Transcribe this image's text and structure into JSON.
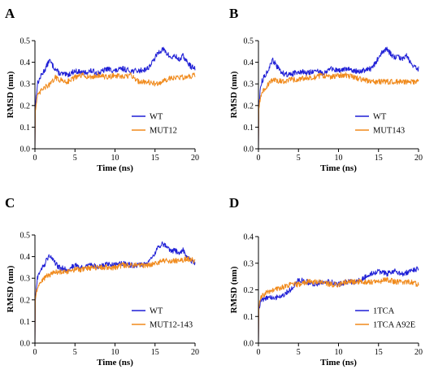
{
  "chart_data": [
    {
      "panel": "A",
      "type": "line",
      "xlabel": "Time (ns)",
      "ylabel": "RMSD (nm)",
      "xlim": [
        0,
        20
      ],
      "ylim": [
        0,
        0.5
      ],
      "xticks": [
        "0",
        "5",
        "10",
        "15",
        "20"
      ],
      "yticks": [
        "0.0",
        "0.1",
        "0.2",
        "0.3",
        "0.4",
        "0.5"
      ],
      "legend_position": "lower-right",
      "series": [
        {
          "name": "WT",
          "color": "#1f1fd6",
          "x": [
            0,
            0.3,
            0.8,
            1.3,
            1.8,
            2.3,
            3,
            4,
            5,
            6,
            7,
            8,
            9,
            10,
            11,
            12,
            13,
            14,
            14.5,
            15,
            15.5,
            16,
            16.5,
            17,
            17.5,
            18,
            18.5,
            19,
            19.5,
            20
          ],
          "y": [
            0.18,
            0.3,
            0.34,
            0.37,
            0.41,
            0.38,
            0.35,
            0.34,
            0.36,
            0.35,
            0.36,
            0.35,
            0.37,
            0.36,
            0.37,
            0.36,
            0.36,
            0.37,
            0.39,
            0.42,
            0.45,
            0.46,
            0.44,
            0.42,
            0.43,
            0.41,
            0.43,
            0.4,
            0.38,
            0.37
          ]
        },
        {
          "name": "MUT12",
          "color": "#f08a1c",
          "x": [
            0,
            0.3,
            0.8,
            1.5,
            2,
            2.5,
            3,
            4,
            5,
            6,
            7,
            8,
            9,
            10,
            11,
            12,
            13,
            14,
            15,
            16,
            17,
            18,
            19,
            20
          ],
          "y": [
            0.17,
            0.24,
            0.27,
            0.29,
            0.3,
            0.33,
            0.32,
            0.31,
            0.33,
            0.34,
            0.33,
            0.34,
            0.33,
            0.34,
            0.33,
            0.34,
            0.31,
            0.31,
            0.3,
            0.31,
            0.33,
            0.33,
            0.33,
            0.34
          ]
        }
      ]
    },
    {
      "panel": "B",
      "type": "line",
      "xlabel": "Time (ns)",
      "ylabel": "RMSD (nm)",
      "xlim": [
        0,
        20
      ],
      "ylim": [
        0,
        0.5
      ],
      "xticks": [
        "0",
        "5",
        "10",
        "15",
        "20"
      ],
      "yticks": [
        "0.0",
        "0.1",
        "0.2",
        "0.3",
        "0.4",
        "0.5"
      ],
      "legend_position": "lower-right",
      "series": [
        {
          "name": "WT",
          "color": "#1f1fd6",
          "x": [
            0,
            0.3,
            0.8,
            1.3,
            1.8,
            2.3,
            3,
            4,
            5,
            6,
            7,
            8,
            9,
            10,
            11,
            12,
            13,
            14,
            14.5,
            15,
            15.5,
            16,
            16.5,
            17,
            17.5,
            18,
            18.5,
            19,
            19.5,
            20
          ],
          "y": [
            0.18,
            0.3,
            0.34,
            0.37,
            0.41,
            0.38,
            0.35,
            0.34,
            0.36,
            0.35,
            0.36,
            0.35,
            0.37,
            0.36,
            0.37,
            0.36,
            0.36,
            0.37,
            0.39,
            0.42,
            0.45,
            0.46,
            0.44,
            0.42,
            0.43,
            0.41,
            0.43,
            0.4,
            0.38,
            0.37
          ]
        },
        {
          "name": "MUT143",
          "color": "#f08a1c",
          "x": [
            0,
            0.3,
            0.8,
            1.5,
            2,
            3,
            4,
            5,
            6,
            7,
            8,
            9,
            10,
            11,
            12,
            13,
            14,
            15,
            16,
            17,
            18,
            19,
            20
          ],
          "y": [
            0.18,
            0.25,
            0.28,
            0.31,
            0.32,
            0.31,
            0.32,
            0.32,
            0.33,
            0.33,
            0.34,
            0.33,
            0.34,
            0.34,
            0.33,
            0.32,
            0.31,
            0.31,
            0.31,
            0.31,
            0.31,
            0.31,
            0.31
          ]
        }
      ]
    },
    {
      "panel": "C",
      "type": "line",
      "xlabel": "Time (ns)",
      "ylabel": "RMSD (nm)",
      "xlim": [
        0,
        20
      ],
      "ylim": [
        0,
        0.5
      ],
      "xticks": [
        "0",
        "5",
        "10",
        "15",
        "20"
      ],
      "yticks": [
        "0.0",
        "0.1",
        "0.2",
        "0.3",
        "0.4",
        "0.5"
      ],
      "legend_position": "lower-right",
      "series": [
        {
          "name": "WT",
          "color": "#1f1fd6",
          "x": [
            0,
            0.3,
            0.8,
            1.3,
            1.8,
            2.3,
            3,
            4,
            5,
            6,
            7,
            8,
            9,
            10,
            11,
            12,
            13,
            14,
            14.5,
            15,
            15.5,
            16,
            16.5,
            17,
            17.5,
            18,
            18.5,
            19,
            19.5,
            20
          ],
          "y": [
            0.18,
            0.3,
            0.34,
            0.37,
            0.41,
            0.38,
            0.35,
            0.34,
            0.36,
            0.35,
            0.36,
            0.35,
            0.37,
            0.36,
            0.37,
            0.36,
            0.36,
            0.37,
            0.39,
            0.42,
            0.45,
            0.46,
            0.44,
            0.42,
            0.43,
            0.41,
            0.43,
            0.4,
            0.38,
            0.37
          ]
        },
        {
          "name": "MUT12-143",
          "color": "#f08a1c",
          "x": [
            0,
            0.3,
            0.8,
            1.5,
            2,
            3,
            4,
            5,
            6,
            7,
            8,
            9,
            10,
            11,
            12,
            13,
            14,
            15,
            16,
            17,
            18,
            19,
            20
          ],
          "y": [
            0.2,
            0.26,
            0.29,
            0.31,
            0.32,
            0.33,
            0.33,
            0.34,
            0.34,
            0.35,
            0.35,
            0.35,
            0.35,
            0.36,
            0.36,
            0.36,
            0.36,
            0.37,
            0.38,
            0.38,
            0.38,
            0.39,
            0.38
          ]
        }
      ]
    },
    {
      "panel": "D",
      "type": "line",
      "xlabel": "Time (ns)",
      "ylabel": "RMSD (nm)",
      "xlim": [
        0,
        20
      ],
      "ylim": [
        0,
        0.4
      ],
      "xticks": [
        "0",
        "5",
        "10",
        "15",
        "20"
      ],
      "yticks": [
        "0.0",
        "0.1",
        "0.2",
        "0.3",
        "0.4"
      ],
      "legend_position": "lower-right",
      "series": [
        {
          "name": "1TCA",
          "color": "#1f1fd6",
          "x": [
            0,
            0.3,
            1,
            2,
            3,
            4,
            5,
            6,
            7,
            8,
            9,
            10,
            11,
            12,
            13,
            14,
            15,
            16,
            17,
            18,
            19,
            20
          ],
          "y": [
            0.12,
            0.16,
            0.17,
            0.17,
            0.18,
            0.2,
            0.24,
            0.23,
            0.22,
            0.23,
            0.23,
            0.22,
            0.23,
            0.23,
            0.24,
            0.26,
            0.27,
            0.26,
            0.27,
            0.26,
            0.27,
            0.28
          ]
        },
        {
          "name": "1TCA A92E",
          "color": "#f08a1c",
          "x": [
            0,
            0.3,
            1,
            2,
            3,
            4,
            5,
            6,
            7,
            8,
            9,
            10,
            11,
            12,
            13,
            14,
            15,
            16,
            17,
            18,
            19,
            20
          ],
          "y": [
            0.13,
            0.17,
            0.19,
            0.2,
            0.21,
            0.22,
            0.22,
            0.23,
            0.23,
            0.23,
            0.22,
            0.22,
            0.23,
            0.23,
            0.23,
            0.23,
            0.23,
            0.24,
            0.23,
            0.23,
            0.23,
            0.22
          ]
        }
      ]
    }
  ]
}
